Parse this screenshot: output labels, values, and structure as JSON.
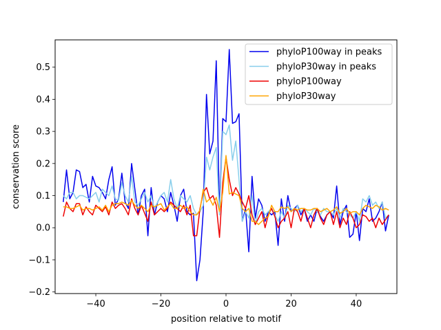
{
  "chart_data": {
    "type": "line",
    "title": "",
    "xlabel": "position relative to motif",
    "ylabel": "conservation score",
    "xlim": [
      -52.5,
      52.5
    ],
    "ylim": [
      -0.205,
      0.585
    ],
    "xticks": [
      -40,
      -20,
      0,
      20,
      40
    ],
    "xtick_labels": [
      "−40",
      "−20",
      "0",
      "20",
      "40"
    ],
    "yticks": [
      -0.2,
      -0.1,
      0.0,
      0.1,
      0.2,
      0.3,
      0.4,
      0.5
    ],
    "ytick_labels": [
      "−0.2",
      "−0.1",
      "0.0",
      "0.1",
      "0.2",
      "0.3",
      "0.4",
      "0.5"
    ],
    "grid": false,
    "legend_position": "top-right",
    "x": [
      -50,
      -49,
      -48,
      -47,
      -46,
      -45,
      -44,
      -43,
      -42,
      -41,
      -40,
      -39,
      -38,
      -37,
      -36,
      -35,
      -34,
      -33,
      -32,
      -31,
      -30,
      -29,
      -28,
      -27,
      -26,
      -25,
      -24,
      -23,
      -22,
      -21,
      -20,
      -19,
      -18,
      -17,
      -16,
      -15,
      -14,
      -13,
      -12,
      -11,
      -10,
      -9,
      -8,
      -7,
      -6,
      -5,
      -4,
      -3,
      -2,
      -1,
      0,
      1,
      2,
      3,
      4,
      5,
      6,
      7,
      8,
      9,
      10,
      11,
      12,
      13,
      14,
      15,
      16,
      17,
      18,
      19,
      20,
      21,
      22,
      23,
      24,
      25,
      26,
      27,
      28,
      29,
      30,
      31,
      32,
      33,
      34,
      35,
      36,
      37,
      38,
      39,
      40,
      41,
      42,
      43,
      44,
      45,
      46,
      47,
      48,
      49,
      50
    ],
    "series": [
      {
        "name": "phyloP100way in peaks",
        "color": "#0000ee",
        "values": [
          0.08,
          0.18,
          0.09,
          0.11,
          0.18,
          0.175,
          0.125,
          0.135,
          0.08,
          0.16,
          0.13,
          0.125,
          0.11,
          0.09,
          0.15,
          0.19,
          0.07,
          0.09,
          0.17,
          0.08,
          0.06,
          0.2,
          0.12,
          0.04,
          0.1,
          0.12,
          -0.025,
          0.125,
          0.04,
          0.08,
          0.1,
          0.09,
          0.05,
          0.11,
          0.07,
          0.02,
          0.1,
          0.12,
          0.05,
          0.04,
          0.045,
          -0.165,
          -0.1,
          0.05,
          0.415,
          0.23,
          0.27,
          0.52,
          0.05,
          0.34,
          0.33,
          0.555,
          0.325,
          0.33,
          0.355,
          0.02,
          0.06,
          -0.075,
          0.16,
          0.03,
          0.09,
          0.07,
          0.02,
          0.05,
          0.04,
          0.05,
          -0.055,
          0.09,
          0.02,
          0.1,
          0.05,
          0.06,
          0.07,
          0.04,
          0.06,
          0.02,
          0.04,
          0.02,
          0.06,
          0.035,
          0.02,
          0.04,
          0.05,
          0.03,
          0.13,
          0.01,
          0.05,
          0.07,
          -0.03,
          -0.02,
          0.05,
          -0.04,
          0.06,
          0.05,
          0.09,
          0.02,
          0.03,
          0.05,
          0.08,
          -0.01,
          0.04
        ]
      },
      {
        "name": "phyloP30way in peaks",
        "color": "#87ceeb",
        "values": [
          0.1,
          0.09,
          0.11,
          0.11,
          0.09,
          0.1,
          0.1,
          0.095,
          0.09,
          0.1,
          0.11,
          0.08,
          0.12,
          0.11,
          0.1,
          0.13,
          0.09,
          0.085,
          0.14,
          0.1,
          0.08,
          0.16,
          0.08,
          0.07,
          0.09,
          0.11,
          0.08,
          0.1,
          0.06,
          0.08,
          0.1,
          0.11,
          0.08,
          0.15,
          0.09,
          0.06,
          0.1,
          0.09,
          0.08,
          0.1,
          0.06,
          0.04,
          0.05,
          0.07,
          0.22,
          0.18,
          0.22,
          0.25,
          0.04,
          0.3,
          0.29,
          0.32,
          0.21,
          0.27,
          0.15,
          0.02,
          0.05,
          0.03,
          0.1,
          0.01,
          0.05,
          0.06,
          0.04,
          0.05,
          0.06,
          0.04,
          0.02,
          0.05,
          0.03,
          0.07,
          0.06,
          0.05,
          0.07,
          0.05,
          0.06,
          0.05,
          0.04,
          0.06,
          0.05,
          0.04,
          0.06,
          0.05,
          0.05,
          0.04,
          0.06,
          0.03,
          0.06,
          0.05,
          0.04,
          0.03,
          0.05,
          0.02,
          0.09,
          0.08,
          0.1,
          0.07,
          0.08,
          0.06,
          0.08,
          0.03,
          0.04
        ]
      },
      {
        "name": "phyloP100way",
        "color": "#ee0000",
        "values": [
          0.035,
          0.08,
          0.06,
          0.05,
          0.075,
          0.075,
          0.04,
          0.065,
          0.05,
          0.04,
          0.07,
          0.06,
          0.05,
          0.065,
          0.04,
          0.08,
          0.06,
          0.07,
          0.075,
          0.06,
          0.04,
          0.09,
          0.06,
          0.04,
          0.07,
          0.045,
          0.02,
          0.08,
          0.04,
          0.05,
          0.06,
          0.05,
          0.06,
          0.08,
          0.07,
          0.06,
          0.05,
          0.07,
          0.04,
          0.07,
          -0.025,
          -0.025,
          0.06,
          0.11,
          0.125,
          0.09,
          0.1,
          0.07,
          -0.03,
          0.14,
          0.22,
          0.15,
          0.1,
          0.125,
          0.105,
          0.08,
          0.06,
          0.1,
          0.04,
          0.01,
          0.03,
          0.05,
          0.0,
          0.04,
          0.06,
          0.035,
          0.0,
          0.02,
          0.03,
          0.05,
          0.0,
          0.06,
          0.05,
          0.02,
          0.06,
          0.03,
          0.0,
          0.04,
          0.06,
          0.03,
          0.01,
          0.04,
          0.05,
          0.01,
          0.05,
          0.0,
          0.03,
          0.01,
          0.05,
          0.03,
          0.0,
          0.01,
          0.04,
          0.035,
          0.02,
          0.03,
          0.0,
          0.03,
          0.01,
          0.025,
          0.04
        ]
      },
      {
        "name": "phyloP30way",
        "color": "#ffa500",
        "values": [
          0.065,
          0.065,
          0.06,
          0.06,
          0.065,
          0.07,
          0.055,
          0.06,
          0.06,
          0.055,
          0.06,
          0.065,
          0.055,
          0.07,
          0.05,
          0.07,
          0.075,
          0.075,
          0.08,
          0.075,
          0.07,
          0.085,
          0.07,
          0.06,
          0.07,
          0.06,
          0.05,
          0.07,
          0.065,
          0.07,
          0.075,
          0.055,
          0.065,
          0.075,
          0.06,
          0.06,
          0.07,
          0.06,
          0.065,
          0.05,
          0.04,
          0.04,
          0.055,
          0.12,
          0.08,
          0.09,
          0.07,
          0.095,
          0.05,
          0.11,
          0.225,
          0.105,
          0.11,
          0.105,
          0.1,
          0.06,
          0.05,
          0.06,
          0.02,
          0.02,
          0.01,
          0.02,
          0.03,
          0.035,
          0.07,
          0.05,
          0.05,
          0.065,
          0.06,
          0.065,
          0.05,
          0.06,
          0.055,
          0.06,
          0.06,
          0.055,
          0.055,
          0.06,
          0.06,
          0.05,
          0.055,
          0.06,
          0.05,
          0.055,
          0.065,
          0.045,
          0.05,
          0.06,
          0.045,
          0.05,
          0.05,
          0.04,
          0.06,
          0.07,
          0.065,
          0.06,
          0.07,
          0.065,
          0.055,
          0.06,
          0.055
        ]
      }
    ]
  }
}
